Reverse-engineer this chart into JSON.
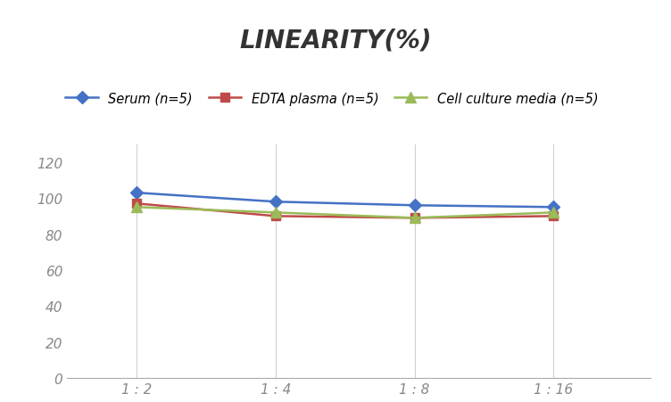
{
  "title": "LINEARITY(%)",
  "x_labels": [
    "1 : 2",
    "1 : 4",
    "1 : 8",
    "1 : 16"
  ],
  "x_positions": [
    1,
    2,
    3,
    4
  ],
  "series": [
    {
      "label": "Serum (n=5)",
      "values": [
        103,
        98,
        96,
        95
      ],
      "color": "#4472C4",
      "marker": "D",
      "marker_size": 7,
      "linewidth": 1.8
    },
    {
      "label": "EDTA plasma (n=5)",
      "values": [
        97,
        90,
        89,
        90
      ],
      "color": "#BE4B48",
      "marker": "s",
      "marker_size": 7,
      "linewidth": 1.8
    },
    {
      "label": "Cell culture media (n=5)",
      "values": [
        95,
        92,
        89,
        92
      ],
      "color": "#9BBB59",
      "marker": "^",
      "marker_size": 8,
      "linewidth": 1.8
    }
  ],
  "ylim": [
    0,
    130
  ],
  "yticks": [
    0,
    20,
    40,
    60,
    80,
    100,
    120
  ],
  "grid_color": "#D0D0D0",
  "background_color": "#FFFFFF",
  "title_fontsize": 20,
  "legend_fontsize": 10.5,
  "tick_fontsize": 11,
  "tick_color": "#888888"
}
